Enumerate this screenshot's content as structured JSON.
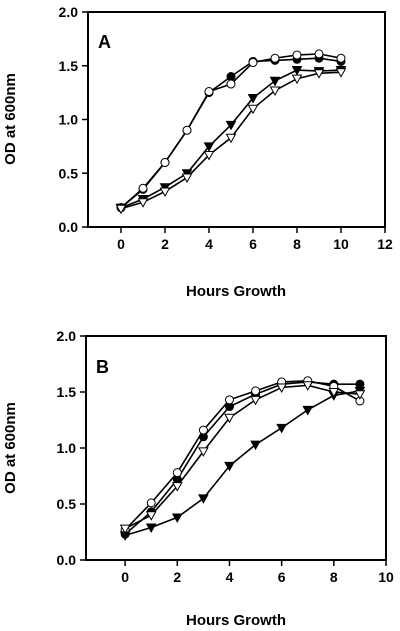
{
  "chart_data": [
    {
      "type": "line",
      "panel_label": "A",
      "xlabel": "Hours Growth",
      "ylabel": "OD at 600nm",
      "xlim": [
        -1.5,
        12
      ],
      "ylim": [
        0,
        2.0
      ],
      "xticks": [
        0,
        2,
        4,
        6,
        8,
        10,
        12
      ],
      "yticks": [
        0.0,
        0.5,
        1.0,
        1.5,
        2.0
      ],
      "xtick_labels": [
        "0",
        "2",
        "4",
        "6",
        "8",
        "10",
        "12"
      ],
      "ytick_labels": [
        "0.0",
        "0.5",
        "1.0",
        "1.5",
        "2.0"
      ],
      "grid": false,
      "series": [
        {
          "marker": "filled-circle",
          "x": [
            0,
            1,
            2,
            3,
            4,
            5,
            6,
            7,
            8,
            9,
            10
          ],
          "y": [
            0.18,
            0.35,
            0.6,
            0.9,
            1.25,
            1.4,
            1.54,
            1.55,
            1.56,
            1.57,
            1.54
          ]
        },
        {
          "marker": "open-circle",
          "x": [
            0,
            1,
            2,
            3,
            4,
            5,
            6,
            7,
            8,
            9,
            10
          ],
          "y": [
            0.18,
            0.36,
            0.6,
            0.9,
            1.26,
            1.33,
            1.53,
            1.57,
            1.6,
            1.61,
            1.57
          ]
        },
        {
          "marker": "filled-triangle-down",
          "x": [
            0,
            1,
            2,
            3,
            4,
            5,
            6,
            7,
            8,
            9,
            10
          ],
          "y": [
            0.18,
            0.26,
            0.37,
            0.5,
            0.75,
            0.95,
            1.2,
            1.36,
            1.46,
            1.45,
            1.46
          ]
        },
        {
          "marker": "open-triangle-down",
          "x": [
            0,
            1,
            2,
            3,
            4,
            5,
            6,
            7,
            8,
            9,
            10
          ],
          "y": [
            0.17,
            0.23,
            0.33,
            0.46,
            0.67,
            0.83,
            1.1,
            1.27,
            1.38,
            1.43,
            1.44
          ]
        }
      ]
    },
    {
      "type": "line",
      "panel_label": "B",
      "xlabel": "Hours Growth",
      "ylabel": "OD at 600nm",
      "xlim": [
        -1.5,
        10
      ],
      "ylim": [
        0,
        2.0
      ],
      "xticks": [
        0,
        2,
        4,
        6,
        8,
        10
      ],
      "yticks": [
        0.0,
        0.5,
        1.0,
        1.5,
        2.0
      ],
      "xtick_labels": [
        "0",
        "2",
        "4",
        "6",
        "8",
        "10"
      ],
      "ytick_labels": [
        "0.0",
        "0.5",
        "1.0",
        "1.5",
        "2.0"
      ],
      "grid": false,
      "series": [
        {
          "marker": "filled-circle",
          "x": [
            0,
            1,
            2,
            3,
            4,
            5,
            6,
            7,
            8,
            9
          ],
          "y": [
            0.23,
            0.43,
            0.72,
            1.1,
            1.37,
            1.48,
            1.57,
            1.59,
            1.57,
            1.57
          ]
        },
        {
          "marker": "open-circle",
          "x": [
            0,
            1,
            2,
            3,
            4,
            5,
            6,
            7,
            8,
            9
          ],
          "y": [
            0.27,
            0.51,
            0.78,
            1.16,
            1.43,
            1.51,
            1.59,
            1.6,
            1.55,
            1.42
          ]
        },
        {
          "marker": "filled-triangle-down",
          "x": [
            0,
            1,
            2,
            3,
            4,
            5,
            6,
            7,
            8,
            9
          ],
          "y": [
            0.22,
            0.29,
            0.38,
            0.55,
            0.84,
            1.03,
            1.18,
            1.34,
            1.47,
            1.51
          ]
        },
        {
          "marker": "open-triangle-down",
          "x": [
            0,
            1,
            2,
            3,
            4,
            5,
            6,
            7,
            8,
            9
          ],
          "y": [
            0.28,
            0.4,
            0.66,
            0.97,
            1.27,
            1.43,
            1.54,
            1.56,
            1.5,
            1.48
          ]
        }
      ]
    }
  ]
}
